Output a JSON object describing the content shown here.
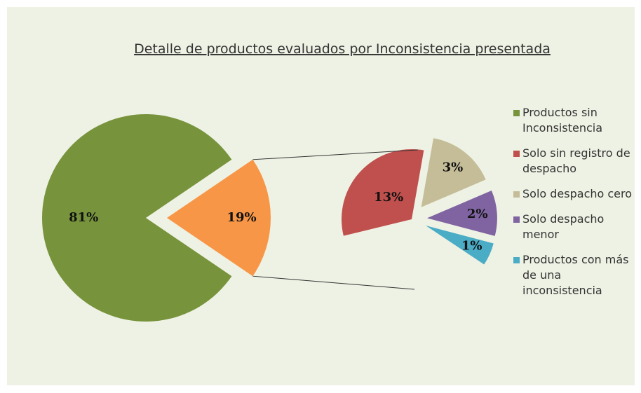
{
  "chart_data": {
    "type": "pie_of_pie",
    "title": "Detalle de productos evaluados por Inconsistencia presentada",
    "categories": [
      "Productos sin Inconsistencia",
      null
    ],
    "values": [
      81,
      19
    ],
    "value_labels": [
      "81%",
      "19%"
    ],
    "colors": [
      "#77933c",
      "#f79646"
    ],
    "secondary": {
      "categories": [
        "Solo sin registro de despacho",
        "Solo despacho cero",
        "Solo despacho menor",
        "Productos con más de una inconsistencia"
      ],
      "values": [
        13,
        3,
        2,
        1
      ],
      "value_labels": [
        "13%",
        "3%",
        "2%",
        "1%"
      ],
      "colors": [
        "#c0504d",
        "#c4bd97",
        "#8064a2",
        "#4bacc6"
      ]
    },
    "legend": "right"
  }
}
